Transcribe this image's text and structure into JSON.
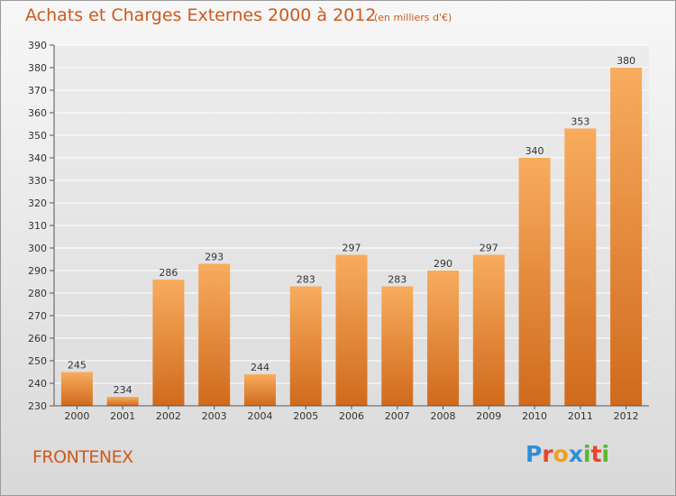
{
  "header": {
    "title": "Achats et Charges Externes 2000 à 2012",
    "subtitle": "(en milliers d'€)"
  },
  "footer": {
    "commune": "FRONTENEX",
    "logo": "Proxiti"
  },
  "colors": {
    "bar_light": "#f7a85a",
    "bar_dark": "#d2691e",
    "title": "#cc5a1e"
  },
  "chart_data": {
    "type": "bar",
    "categories": [
      "2000",
      "2001",
      "2002",
      "2003",
      "2004",
      "2005",
      "2006",
      "2007",
      "2008",
      "2009",
      "2010",
      "2011",
      "2012"
    ],
    "values": [
      245,
      234,
      286,
      293,
      244,
      283,
      297,
      283,
      290,
      297,
      340,
      353,
      380
    ],
    "title": "Achats et Charges Externes 2000 à 2012",
    "xlabel": "",
    "ylabel": "",
    "ylim": [
      230,
      390
    ],
    "yticks": [
      230,
      240,
      250,
      260,
      270,
      280,
      290,
      300,
      310,
      320,
      330,
      340,
      350,
      360,
      370,
      380,
      390
    ],
    "grid": true
  }
}
